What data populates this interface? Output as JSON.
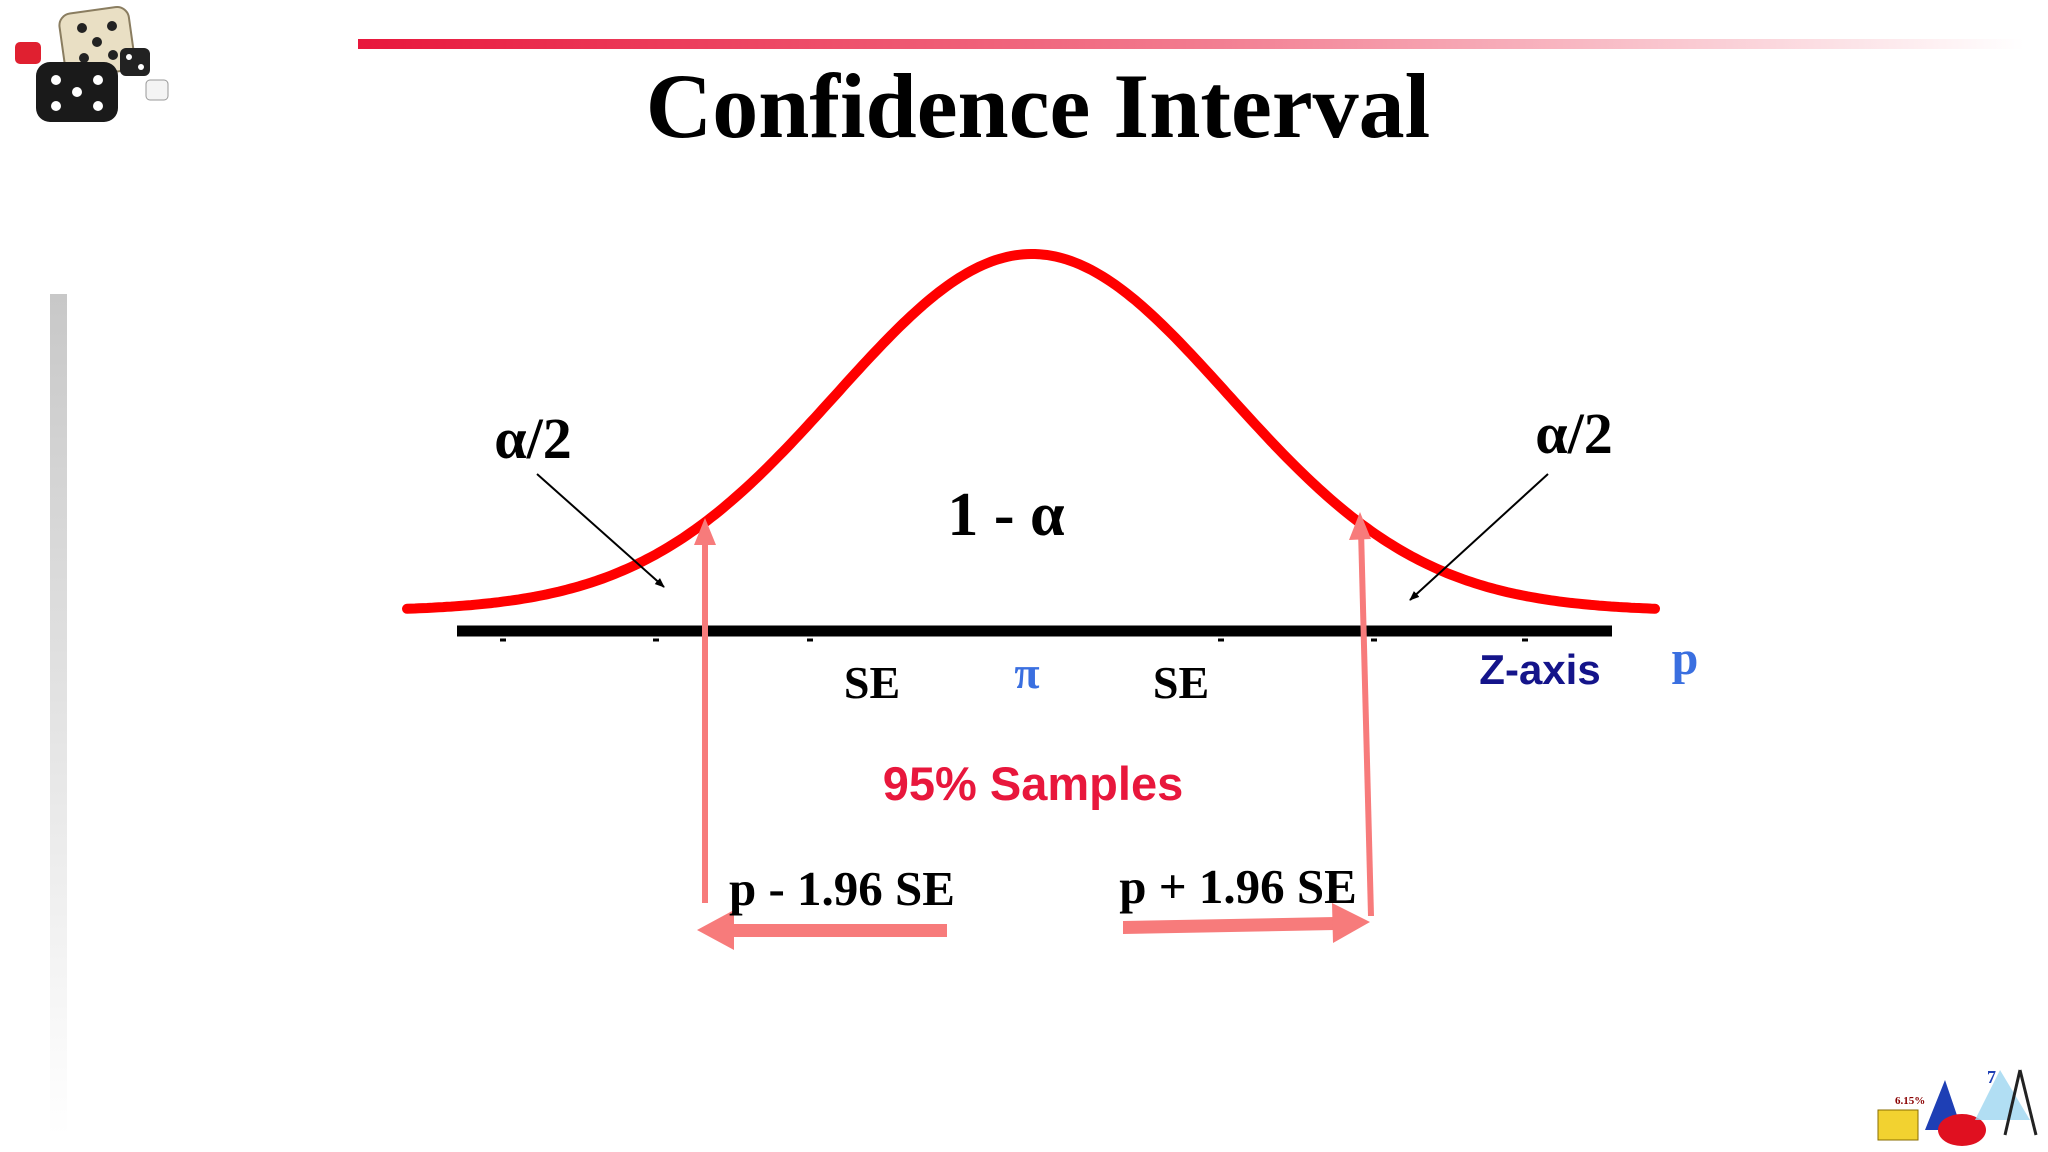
{
  "title": "Confidence Interval",
  "labels": {
    "alpha_left": "α/2",
    "alpha_right": "α/2",
    "center": "1 - α",
    "se_left": "SE",
    "pi": "π",
    "se_right": "SE",
    "z_axis": "Z-axis",
    "p": "p",
    "samples": "95% Samples",
    "lower": "p - 1.96 SE",
    "upper": "p + 1.96 SE"
  },
  "logo": {
    "percent": "6.15%",
    "number": "7"
  }
}
